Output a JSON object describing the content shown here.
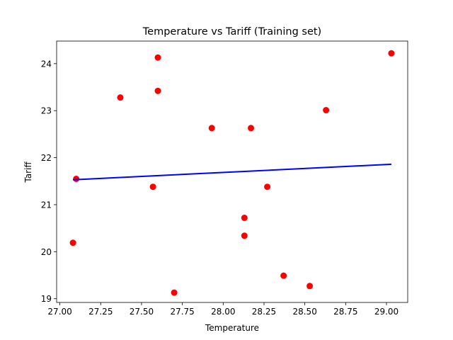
{
  "chart_data": {
    "type": "scatter",
    "title": "Temperature vs Tariff (Training set)",
    "xlabel": "Temperature",
    "ylabel": "Tariff",
    "xlim": [
      26.98,
      29.13
    ],
    "ylim": [
      18.92,
      24.48
    ],
    "xticks": [
      27.0,
      27.25,
      27.5,
      27.75,
      28.0,
      28.25,
      28.5,
      28.75,
      29.0
    ],
    "xtick_labels": [
      "27.00",
      "27.25",
      "27.50",
      "27.75",
      "28.00",
      "28.25",
      "28.50",
      "28.75",
      "29.00"
    ],
    "yticks": [
      19,
      20,
      21,
      22,
      23,
      24
    ],
    "ytick_labels": [
      "19",
      "20",
      "21",
      "22",
      "23",
      "24"
    ],
    "grid": false,
    "series": [
      {
        "kind": "scatter",
        "color": "#ff0000",
        "x": [
          27.08,
          27.1,
          27.37,
          27.57,
          27.6,
          27.6,
          27.7,
          27.93,
          28.13,
          28.13,
          28.17,
          28.27,
          28.37,
          28.53,
          28.63,
          29.03
        ],
        "y": [
          20.19,
          21.55,
          23.28,
          21.38,
          24.13,
          23.42,
          19.13,
          22.63,
          20.72,
          20.34,
          22.63,
          21.38,
          19.49,
          19.27,
          23.01,
          24.22
        ]
      },
      {
        "kind": "line",
        "color": "#0000ff",
        "x": [
          27.08,
          29.03
        ],
        "y": [
          21.53,
          21.86
        ]
      }
    ]
  }
}
